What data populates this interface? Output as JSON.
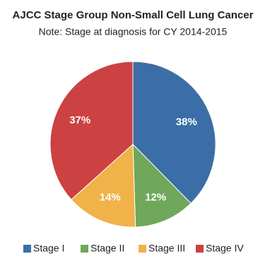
{
  "chart_data": {
    "type": "pie",
    "title": "AJCC Stage Group Non-Small Cell Lung Cancer",
    "subtitle": "Note: Stage at diagnosis for CY 2014-2015",
    "categories": [
      "Stage I",
      "Stage II",
      "Stage III",
      "Stage IV"
    ],
    "values": [
      38,
      12,
      14,
      37
    ],
    "value_labels": [
      "38%",
      "12%",
      "14%",
      "37%"
    ],
    "colors": [
      "#3b6ea6",
      "#6fa75b",
      "#f0b249",
      "#cc4141"
    ],
    "legend": "bottom"
  }
}
